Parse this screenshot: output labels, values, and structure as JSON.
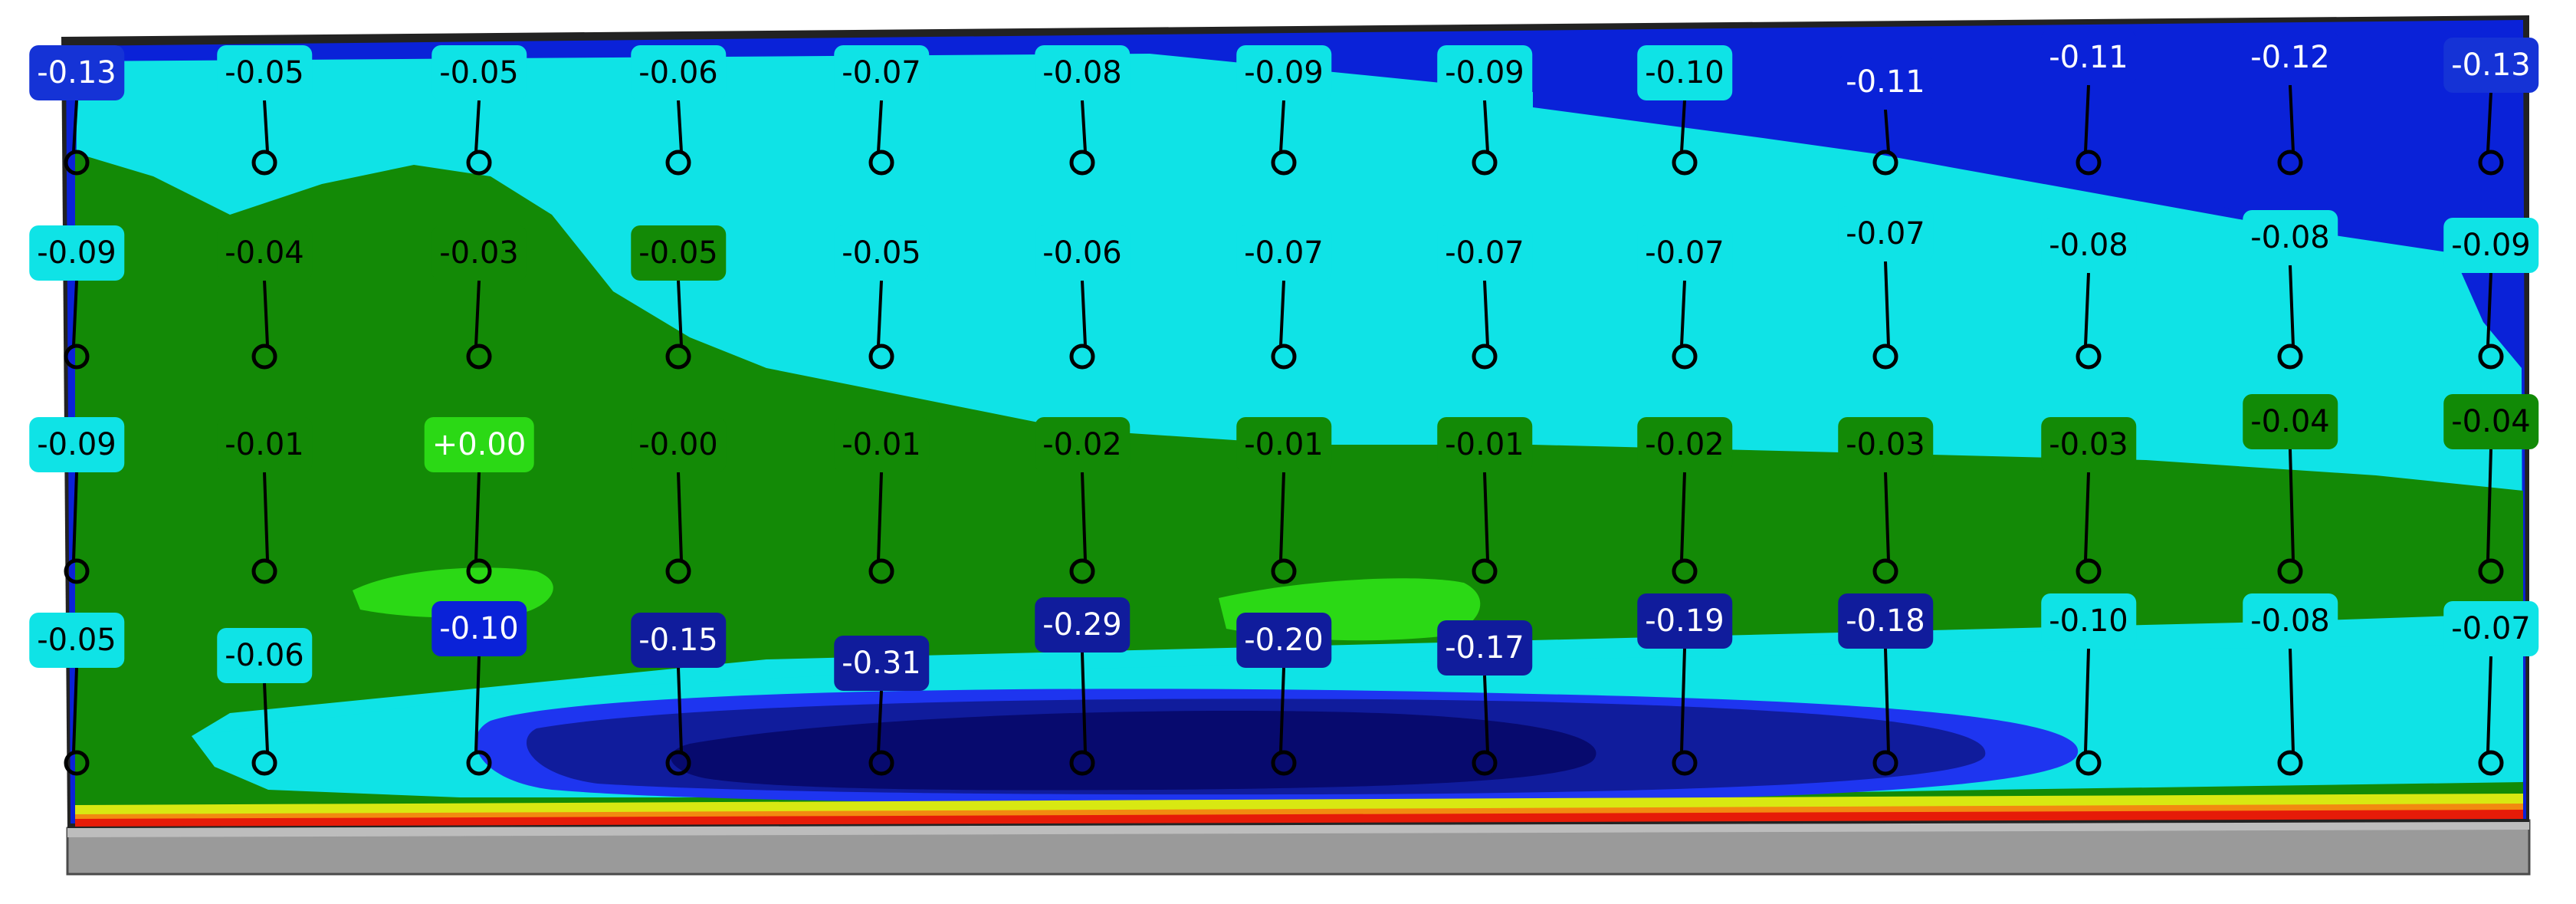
{
  "legend_colors": {
    "deep_navy": "#070a6e",
    "navy": "#101c9c",
    "blue": "#0a22d8",
    "bright_blue": "#1e35f0",
    "cyan": "#0fe3e6",
    "green": "#138a06",
    "light_green": "#2bd915",
    "yellow": "#d8e812",
    "orange": "#f28a10",
    "red": "#e61b08"
  },
  "probe_rows": [
    {
      "row": "row-1",
      "labels": [
        "-0.13",
        "-0.05",
        "-0.05",
        "-0.06",
        "-0.07",
        "-0.08",
        "-0.09",
        "-0.09",
        "-0.10",
        "-0.11",
        "-0.11",
        "-0.12",
        "-0.13"
      ]
    },
    {
      "row": "row-2",
      "labels": [
        "-0.09",
        "-0.04",
        "-0.03",
        "-0.05",
        "-0.05",
        "-0.06",
        "-0.07",
        "-0.07",
        "-0.07",
        "-0.07",
        "-0.08",
        "-0.08",
        "-0.09"
      ]
    },
    {
      "row": "row-3",
      "labels": [
        "-0.09",
        "-0.01",
        "+0.00",
        "-0.00",
        "-0.01",
        "-0.02",
        "-0.01",
        "-0.01",
        "-0.02",
        "-0.03",
        "-0.03",
        "-0.04",
        "-0.04"
      ]
    },
    {
      "row": "row-4",
      "labels": [
        "-0.05",
        "-0.06",
        "-0.10",
        "-0.15",
        "-0.31",
        "-0.29",
        "-0.20",
        "-0.17",
        "-0.19",
        "-0.18",
        "-0.10",
        "-0.08",
        "-0.07"
      ]
    }
  ]
}
